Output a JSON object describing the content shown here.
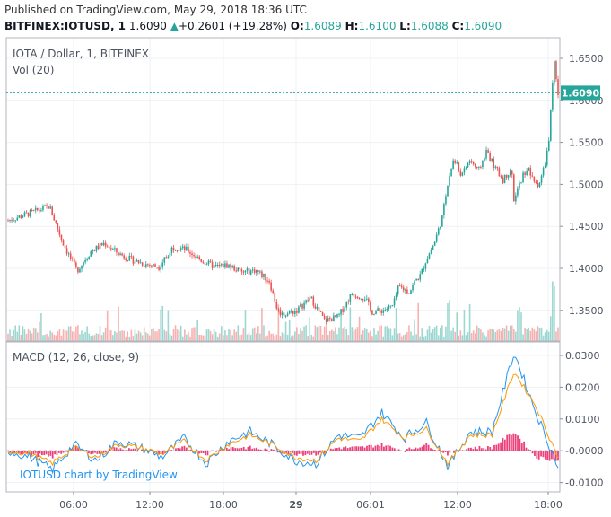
{
  "header": {
    "published": "Published on TradingView.com, May 29, 2018 18:36 UTC",
    "symbol": "BITFINEX:IOTUSD, 1",
    "last": "1.6090",
    "change_arrow": "▲",
    "change": "+0.2601 (+19.28%)",
    "o_label": "O:",
    "o_value": "1.6089",
    "h_label": "H:",
    "h_value": "1.6100",
    "l_label": "L:",
    "l_value": "1.6088",
    "c_label": "C:",
    "c_value": "1.6090"
  },
  "legend": {
    "title": "IOTA / Dollar, 1, BITFINEX",
    "volume": "Vol (20)",
    "macd": "MACD (12, 26, close, 9)"
  },
  "watermark": "IOTUSD chart by TradingView",
  "last_price_tag": "1.6090",
  "colors": {
    "up": "#26a69a",
    "down": "#ef5350",
    "macd_line": "#2196f3",
    "signal_line": "#ff9800",
    "histogram": "#e91e63",
    "last_price": "#26a69a"
  },
  "chart_data": [
    {
      "type": "candlestick",
      "title": "IOTA / Dollar, 1, BITFINEX",
      "x_ticks": [
        "06:00",
        "12:00",
        "18:00",
        "29",
        "06:01",
        "12:00",
        "18:00"
      ],
      "y_ticks": [
        "1.6500",
        "1.6000",
        "1.5500",
        "1.5000",
        "1.4500",
        "1.4000",
        "1.3500"
      ],
      "ylim": [
        1.31,
        1.66
      ],
      "last_price": 1.609,
      "price_path": [
        {
          "t": 0,
          "p": 1.457
        },
        {
          "t": 0.05,
          "p": 1.468
        },
        {
          "t": 0.075,
          "p": 1.474
        },
        {
          "t": 0.1,
          "p": 1.43
        },
        {
          "t": 0.125,
          "p": 1.397
        },
        {
          "t": 0.15,
          "p": 1.42
        },
        {
          "t": 0.175,
          "p": 1.43
        },
        {
          "t": 0.2,
          "p": 1.418
        },
        {
          "t": 0.225,
          "p": 1.41
        },
        {
          "t": 0.25,
          "p": 1.405
        },
        {
          "t": 0.275,
          "p": 1.402
        },
        {
          "t": 0.3,
          "p": 1.426
        },
        {
          "t": 0.325,
          "p": 1.422
        },
        {
          "t": 0.35,
          "p": 1.41
        },
        {
          "t": 0.375,
          "p": 1.402
        },
        {
          "t": 0.4,
          "p": 1.404
        },
        {
          "t": 0.425,
          "p": 1.395
        },
        {
          "t": 0.45,
          "p": 1.398
        },
        {
          "t": 0.475,
          "p": 1.385
        },
        {
          "t": 0.49,
          "p": 1.35
        },
        {
          "t": 0.5,
          "p": 1.345
        },
        {
          "t": 0.525,
          "p": 1.35
        },
        {
          "t": 0.55,
          "p": 1.365
        },
        {
          "t": 0.575,
          "p": 1.338
        },
        {
          "t": 0.6,
          "p": 1.342
        },
        {
          "t": 0.625,
          "p": 1.37
        },
        {
          "t": 0.65,
          "p": 1.365
        },
        {
          "t": 0.66,
          "p": 1.348
        },
        {
          "t": 0.68,
          "p": 1.35
        },
        {
          "t": 0.7,
          "p": 1.355
        },
        {
          "t": 0.71,
          "p": 1.378
        },
        {
          "t": 0.73,
          "p": 1.372
        },
        {
          "t": 0.74,
          "p": 1.385
        },
        {
          "t": 0.75,
          "p": 1.392
        },
        {
          "t": 0.76,
          "p": 1.41
        },
        {
          "t": 0.775,
          "p": 1.43
        },
        {
          "t": 0.79,
          "p": 1.462
        },
        {
          "t": 0.8,
          "p": 1.505
        },
        {
          "t": 0.81,
          "p": 1.53
        },
        {
          "t": 0.825,
          "p": 1.51
        },
        {
          "t": 0.84,
          "p": 1.53
        },
        {
          "t": 0.855,
          "p": 1.515
        },
        {
          "t": 0.87,
          "p": 1.54
        },
        {
          "t": 0.885,
          "p": 1.52
        },
        {
          "t": 0.9,
          "p": 1.505
        },
        {
          "t": 0.915,
          "p": 1.52
        },
        {
          "t": 0.92,
          "p": 1.48
        },
        {
          "t": 0.935,
          "p": 1.51
        },
        {
          "t": 0.945,
          "p": 1.52
        },
        {
          "t": 0.955,
          "p": 1.503
        },
        {
          "t": 0.965,
          "p": 1.5
        },
        {
          "t": 0.975,
          "p": 1.52
        },
        {
          "t": 0.983,
          "p": 1.55
        },
        {
          "t": 0.989,
          "p": 1.61
        },
        {
          "t": 0.993,
          "p": 1.645
        },
        {
          "t": 0.997,
          "p": 1.62
        },
        {
          "t": 1.0,
          "p": 1.609
        }
      ]
    },
    {
      "type": "bar",
      "title": "Vol (20)",
      "volume_spikes": [
        {
          "t": 0.28,
          "v": 0.6
        },
        {
          "t": 0.8,
          "v": 0.7
        },
        {
          "t": 0.93,
          "v": 0.5
        },
        {
          "t": 0.99,
          "v": 1.0
        }
      ],
      "baseline": 0.15
    },
    {
      "type": "line",
      "title": "MACD (12, 26, close, 9)",
      "y_ticks": [
        "0.0300",
        "0.0200",
        "0.0100",
        "-0.0000",
        "-0.0100"
      ],
      "ylim": [
        -0.0125,
        0.0325
      ],
      "series": [
        {
          "name": "MACD",
          "values": [
            0.0,
            -0.002,
            -0.006,
            0.002,
            -0.003,
            0.003,
            0.001,
            -0.002,
            0.004,
            -0.004,
            0.003,
            0.006,
            0.002,
            -0.003,
            -0.004,
            0.005,
            0.004,
            0.012,
            0.004,
            0.009,
            -0.005,
            0.006,
            0.006,
            0.031,
            0.012,
            -0.005
          ]
        },
        {
          "name": "Signal",
          "values": [
            0.0,
            -0.001,
            -0.004,
            0.001,
            -0.002,
            0.002,
            0.001,
            -0.001,
            0.003,
            -0.003,
            0.002,
            0.005,
            0.002,
            -0.002,
            -0.003,
            0.004,
            0.003,
            0.01,
            0.004,
            0.007,
            -0.004,
            0.005,
            0.005,
            0.025,
            0.014,
            -0.002
          ]
        }
      ]
    }
  ]
}
